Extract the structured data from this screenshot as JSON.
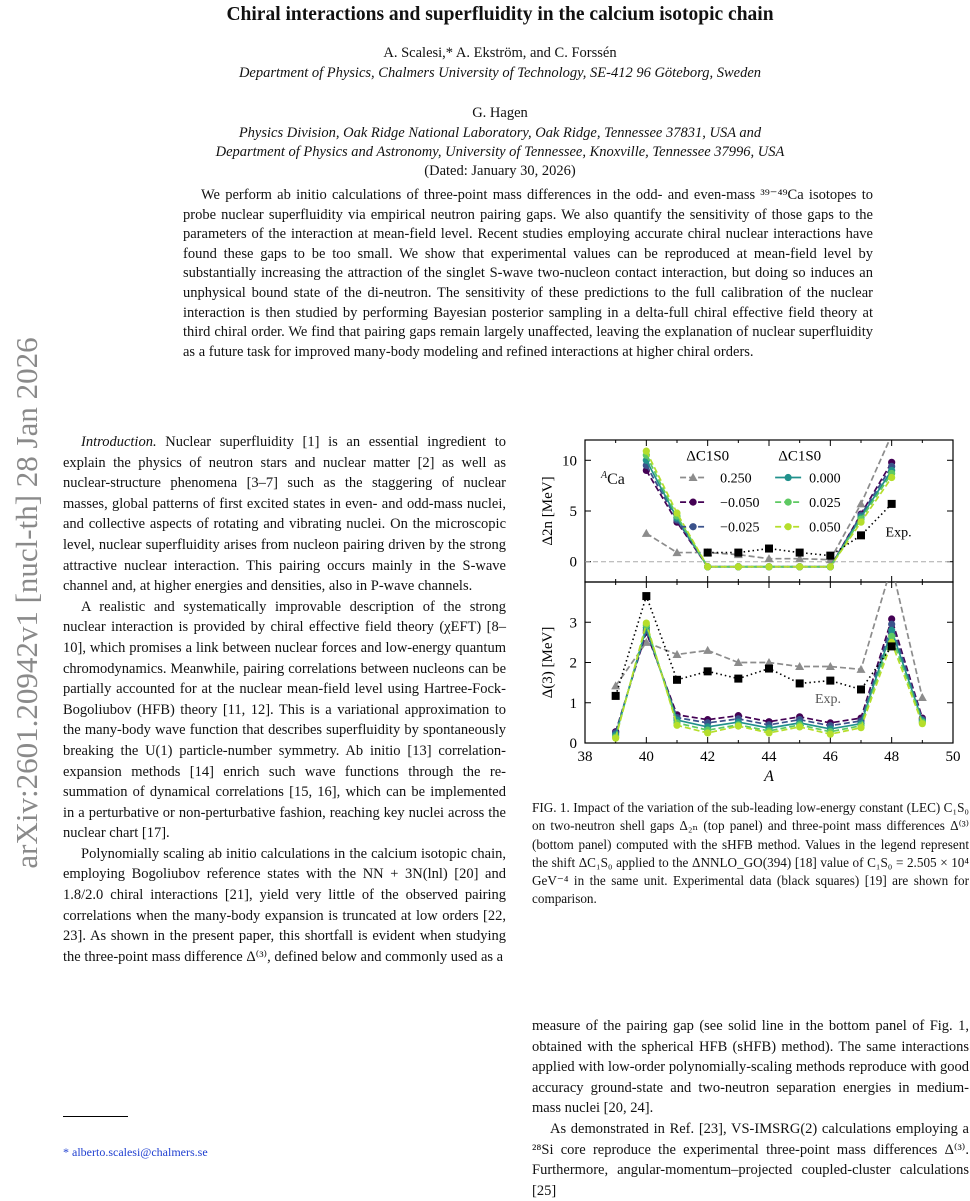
{
  "stamp": "arXiv:2601.20942v1  [nucl-th]  28 Jan 2026",
  "title": "Chiral interactions and superfluidity in the calcium isotopic chain",
  "authors1": "A. Scalesi,* A. Ekström, and C. Forssén",
  "affil1": "Department of Physics, Chalmers University of Technology, SE-412 96 Göteborg, Sweden",
  "authors2": "G. Hagen",
  "affil2a": "Physics Division, Oak Ridge National Laboratory, Oak Ridge, Tennessee 37831, USA and",
  "affil2b": "Department of Physics and Astronomy, University of Tennessee, Knoxville, Tennessee 37996, USA",
  "dated": "(Dated: January 30, 2026)",
  "abstract": "We perform ab initio calculations of three-point mass differences in the odd- and even-mass ³⁹⁻⁴⁹Ca isotopes to probe nuclear superfluidity via empirical neutron pairing gaps. We also quantify the sensitivity of those gaps to the parameters of the interaction at mean-field level. Recent studies employing accurate chiral nuclear interactions have found these gaps to be too small. We show that experimental values can be reproduced at mean-field level by substantially increasing the attraction of the singlet S-wave two-nucleon contact interaction, but doing so induces an unphysical bound state of the di-neutron. The sensitivity of these predictions to the full calibration of the nuclear interaction is then studied by performing Bayesian posterior sampling in a delta-full chiral effective field theory at third chiral order. We find that pairing gaps remain largely unaffected, leaving the explanation of nuclear superfluidity as a future task for improved many-body modeling and refined interactions at higher chiral orders.",
  "left_col": {
    "intro_head": "Introduction.",
    "p1": " Nuclear superfluidity [1] is an essential ingredient to explain the physics of neutron stars and nuclear matter [2] as well as nuclear-structure phenomena [3–7] such as the staggering of nuclear masses, global patterns of first excited states in even- and odd-mass nuclei, and collective aspects of rotating and vibrating nuclei. On the microscopic level, nuclear superfluidity arises from nucleon pairing driven by the strong attractive nuclear interaction. This pairing occurs mainly in the S-wave channel and, at higher energies and densities, also in P-wave channels.",
    "p2": "A realistic and systematically improvable description of the strong nuclear interaction is provided by chiral effective field theory (χEFT) [8–10], which promises a link between nuclear forces and low-energy quantum chromodynamics. Meanwhile, pairing correlations between nucleons can be partially accounted for at the nuclear mean-field level using Hartree-Fock-Bogoliubov (HFB) theory [11, 12]. This is a variational approximation to the many-body wave function that describes superfluidity by spontaneously breaking the U(1) particle-number symmetry. Ab initio [13] correlation-expansion methods [14] enrich such wave functions through the re-summation of dynamical correlations [15, 16], which can be implemented in a perturbative or non-perturbative fashion, reaching key nuclei across the nuclear chart [17].",
    "p3": "Polynomially scaling ab initio calculations in the calcium isotopic chain, employing Bogoliubov reference states with the NN + 3N(lnl) [20] and 1.8/2.0 chiral interactions [21], yield very little of the observed pairing correlations when the many-body expansion is truncated at low orders [22, 23]. As shown in the present paper, this shortfall is evident when studying the three-point mass difference Δ⁽³⁾, defined below and commonly used as a"
  },
  "right_col": {
    "p1": "measure of the pairing gap (see solid line in the bottom panel of Fig. 1, obtained with the spherical HFB (sHFB) method). The same interactions applied with low-order polynomially-scaling methods reproduce with good accuracy ground-state and two-neutron separation energies in medium-mass nuclei [20, 24].",
    "p2": "As demonstrated in Ref. [23], VS-IMSRG(2) calculations employing a ²⁸Si core reproduce the experimental three-point mass differences Δ⁽³⁾. Furthermore, angular-momentum–projected coupled-cluster calculations [25]"
  },
  "caption": "FIG. 1. Impact of the variation of the sub-leading low-energy constant (LEC) C₁S₀ on two-neutron shell gaps Δ₂ₙ (top panel) and three-point mass differences Δ⁽³⁾ (bottom panel) computed with the sHFB method. Values in the legend represent the shift ΔC₁S₀ applied to the ΔNNLO_GO(394) [18] value of C₁S₀ = 2.505 × 10⁴ GeV⁻⁴ in the same unit. Experimental data (black squares) [19] are shown for comparison.",
  "footnote": "* alberto.scalesi@chalmers.se",
  "chart_data": [
    {
      "type": "line",
      "panel": "top",
      "ylabel": "Δ2n [MeV]",
      "annotation": "ACa",
      "exp_label": "Exp.",
      "legend_title": "ΔC1S0",
      "ylim": [
        -2,
        12
      ],
      "yticks": [
        0,
        5,
        10
      ],
      "xlim": [
        38,
        50
      ],
      "series": [
        {
          "name": "0.250",
          "color": "#8c8c8c",
          "marker": "triangle",
          "style": "dashed",
          "x": [
            40,
            41,
            42,
            43,
            44,
            45,
            46,
            47,
            48
          ],
          "y": [
            2.8,
            0.9,
            0.9,
            0.7,
            0.3,
            0.3,
            0.2,
            5.7,
            12.5
          ]
        },
        {
          "name": "−0.050",
          "color": "#440154",
          "marker": "circle",
          "style": "dashed",
          "x": [
            40,
            41,
            42,
            43,
            44,
            45,
            46,
            47,
            48
          ],
          "y": [
            9.0,
            3.9,
            -0.5,
            -0.5,
            -0.5,
            -0.5,
            -0.5,
            4.7,
            9.8
          ]
        },
        {
          "name": "−0.025",
          "color": "#3b528b",
          "marker": "circle",
          "style": "dashed",
          "x": [
            40,
            41,
            42,
            43,
            44,
            45,
            46,
            47,
            48
          ],
          "y": [
            9.5,
            4.1,
            -0.5,
            -0.5,
            -0.5,
            -0.5,
            -0.5,
            4.6,
            9.4
          ]
        },
        {
          "name": "0.000",
          "color": "#21918c",
          "marker": "circle",
          "style": "solid",
          "x": [
            40,
            41,
            42,
            43,
            44,
            45,
            46,
            47,
            48
          ],
          "y": [
            10.0,
            4.3,
            -0.5,
            -0.5,
            -0.5,
            -0.5,
            -0.5,
            4.4,
            9.0
          ]
        },
        {
          "name": "0.025",
          "color": "#5ec962",
          "marker": "circle",
          "style": "dashed",
          "x": [
            40,
            41,
            42,
            43,
            44,
            45,
            46,
            47,
            48
          ],
          "y": [
            10.5,
            4.5,
            -0.5,
            -0.5,
            -0.5,
            -0.5,
            -0.5,
            4.2,
            8.7
          ]
        },
        {
          "name": "0.050",
          "color": "#b5de2b",
          "marker": "circle",
          "style": "dashed",
          "x": [
            40,
            41,
            42,
            43,
            44,
            45,
            46,
            47,
            48
          ],
          "y": [
            10.9,
            4.8,
            -0.5,
            -0.5,
            -0.5,
            -0.5,
            -0.5,
            3.9,
            8.3
          ]
        },
        {
          "name": "Exp.",
          "color": "#000000",
          "marker": "square",
          "style": "dotted",
          "x": [
            42,
            43,
            44,
            45,
            46,
            47,
            48
          ],
          "y": [
            0.9,
            0.9,
            1.3,
            0.9,
            0.6,
            2.6,
            5.7
          ]
        }
      ]
    },
    {
      "type": "line",
      "panel": "bottom",
      "xlabel": "A",
      "ylabel": "Δ(3) [MeV]",
      "exp_label": "Exp.",
      "ylim": [
        0,
        4
      ],
      "yticks": [
        0,
        1,
        2,
        3
      ],
      "xlim": [
        38,
        50
      ],
      "xticks": [
        38,
        40,
        42,
        44,
        46,
        48,
        50
      ],
      "series": [
        {
          "name": "0.250",
          "color": "#8c8c8c",
          "marker": "triangle",
          "style": "dashed",
          "x": [
            39,
            40,
            41,
            42,
            43,
            44,
            45,
            46,
            47,
            48,
            49
          ],
          "y": [
            1.42,
            2.5,
            2.2,
            2.3,
            2.0,
            2.0,
            1.9,
            1.9,
            1.83,
            4.4,
            1.13
          ]
        },
        {
          "name": "−0.050",
          "color": "#440154",
          "marker": "circle",
          "style": "dashed",
          "x": [
            39,
            40,
            41,
            42,
            43,
            44,
            45,
            46,
            47,
            48,
            49
          ],
          "y": [
            0.28,
            2.75,
            0.7,
            0.58,
            0.68,
            0.53,
            0.65,
            0.5,
            0.62,
            3.08,
            0.62
          ]
        },
        {
          "name": "−0.025",
          "color": "#3b528b",
          "marker": "circle",
          "style": "dashed",
          "x": [
            39,
            40,
            41,
            42,
            43,
            44,
            45,
            46,
            47,
            48,
            49
          ],
          "y": [
            0.25,
            2.8,
            0.63,
            0.5,
            0.6,
            0.45,
            0.58,
            0.43,
            0.55,
            2.95,
            0.58
          ]
        },
        {
          "name": "0.000",
          "color": "#21918c",
          "marker": "circle",
          "style": "solid",
          "x": [
            39,
            40,
            41,
            42,
            43,
            44,
            45,
            46,
            47,
            48,
            49
          ],
          "y": [
            0.2,
            2.87,
            0.57,
            0.4,
            0.52,
            0.37,
            0.5,
            0.35,
            0.48,
            2.8,
            0.55
          ]
        },
        {
          "name": "0.025",
          "color": "#5ec962",
          "marker": "circle",
          "style": "dashed",
          "x": [
            39,
            40,
            41,
            42,
            43,
            44,
            45,
            46,
            47,
            48,
            49
          ],
          "y": [
            0.15,
            2.93,
            0.5,
            0.32,
            0.45,
            0.3,
            0.45,
            0.28,
            0.43,
            2.65,
            0.52
          ]
        },
        {
          "name": "0.050",
          "color": "#b5de2b",
          "marker": "circle",
          "style": "dashed",
          "x": [
            39,
            40,
            41,
            42,
            43,
            44,
            45,
            46,
            47,
            48,
            49
          ],
          "y": [
            0.12,
            2.98,
            0.44,
            0.25,
            0.42,
            0.25,
            0.4,
            0.22,
            0.38,
            2.5,
            0.48
          ]
        },
        {
          "name": "Exp.",
          "color": "#000000",
          "marker": "square",
          "style": "dotted",
          "x": [
            39,
            40,
            41,
            42,
            43,
            44,
            45,
            46,
            47,
            48
          ],
          "y": [
            1.17,
            3.65,
            1.57,
            1.78,
            1.6,
            1.85,
            1.48,
            1.55,
            1.33,
            2.4
          ]
        }
      ]
    }
  ]
}
